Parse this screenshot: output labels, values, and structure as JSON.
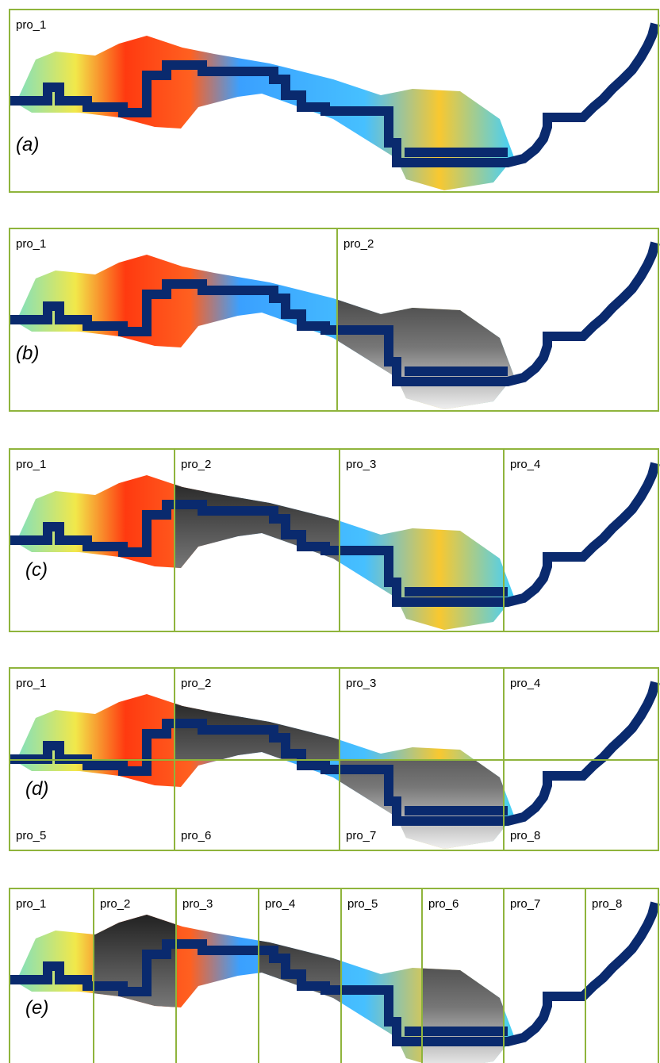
{
  "panels": [
    {
      "label": "(a)",
      "regions": [
        "pro_1"
      ]
    },
    {
      "label": "(b)",
      "regions": [
        "pro_1",
        "pro_2"
      ]
    },
    {
      "label": "(c)",
      "regions": [
        "pro_1",
        "pro_2",
        "pro_3",
        "pro_4"
      ]
    },
    {
      "label": "(d)",
      "regions": [
        "pro_1",
        "pro_2",
        "pro_3",
        "pro_4",
        "pro_5",
        "pro_6",
        "pro_7",
        "pro_8"
      ]
    },
    {
      "label": "(e)",
      "regions": [
        "pro_1",
        "pro_2",
        "pro_3",
        "pro_4",
        "pro_5",
        "pro_6",
        "pro_7",
        "pro_8"
      ]
    }
  ]
}
